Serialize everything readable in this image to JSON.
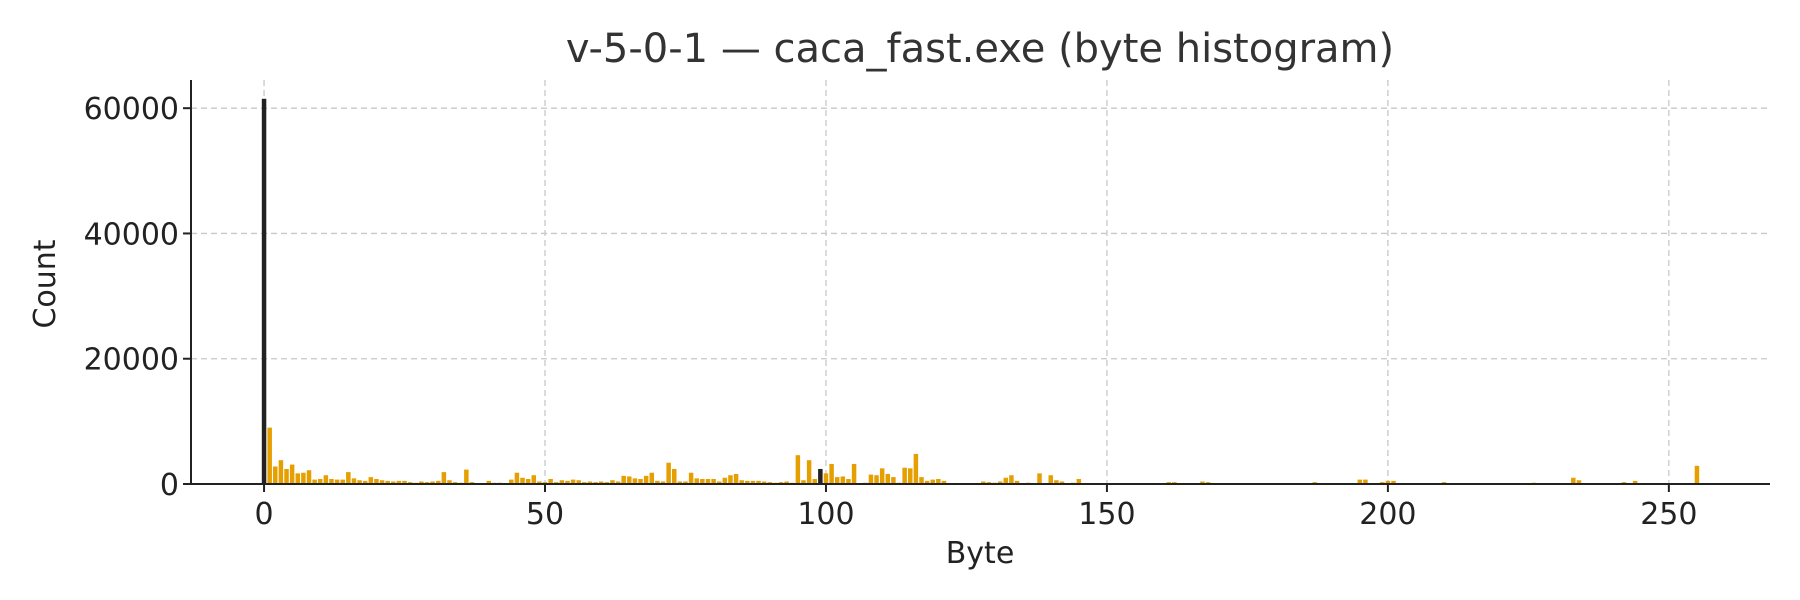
{
  "chart_data": {
    "type": "bar",
    "title": "v-5-0-1 — caca_fast.exe (byte histogram)",
    "xlabel": "Byte",
    "ylabel": "Count",
    "xlim": [
      -13,
      268
    ],
    "ylim": [
      0,
      64500
    ],
    "xticks": [
      0,
      50,
      100,
      150,
      200,
      250
    ],
    "yticks": [
      0,
      20000,
      40000,
      60000
    ],
    "grid": true,
    "bar_color": "#E69F00",
    "highlight_color": "#222222",
    "highlight_bytes": [
      0,
      99
    ],
    "x": [
      0,
      1,
      2,
      3,
      4,
      5,
      6,
      7,
      8,
      9,
      10,
      11,
      12,
      13,
      14,
      15,
      16,
      17,
      18,
      19,
      20,
      21,
      22,
      23,
      24,
      25,
      26,
      27,
      28,
      29,
      30,
      31,
      32,
      33,
      34,
      35,
      36,
      37,
      38,
      39,
      40,
      41,
      42,
      43,
      44,
      45,
      46,
      47,
      48,
      49,
      50,
      51,
      52,
      53,
      54,
      55,
      56,
      57,
      58,
      59,
      60,
      61,
      62,
      63,
      64,
      65,
      66,
      67,
      68,
      69,
      70,
      71,
      72,
      73,
      74,
      75,
      76,
      77,
      78,
      79,
      80,
      81,
      82,
      83,
      84,
      85,
      86,
      87,
      88,
      89,
      90,
      91,
      92,
      93,
      94,
      95,
      96,
      97,
      98,
      99,
      100,
      101,
      102,
      103,
      104,
      105,
      106,
      107,
      108,
      109,
      110,
      111,
      112,
      113,
      114,
      115,
      116,
      117,
      118,
      119,
      120,
      121,
      122,
      123,
      124,
      125,
      126,
      127,
      128,
      129,
      130,
      131,
      132,
      133,
      134,
      135,
      136,
      137,
      138,
      139,
      140,
      141,
      142,
      143,
      144,
      145,
      146,
      147,
      148,
      149,
      150,
      151,
      152,
      153,
      154,
      155,
      156,
      157,
      158,
      159,
      160,
      161,
      162,
      163,
      164,
      165,
      166,
      167,
      168,
      169,
      170,
      171,
      172,
      173,
      174,
      175,
      176,
      177,
      178,
      179,
      180,
      181,
      182,
      183,
      184,
      185,
      186,
      187,
      188,
      189,
      190,
      191,
      192,
      193,
      194,
      195,
      196,
      197,
      198,
      199,
      200,
      201,
      202,
      203,
      204,
      205,
      206,
      207,
      208,
      209,
      210,
      211,
      212,
      213,
      214,
      215,
      216,
      217,
      218,
      219,
      220,
      221,
      222,
      223,
      224,
      225,
      226,
      227,
      228,
      229,
      230,
      231,
      232,
      233,
      234,
      235,
      236,
      237,
      238,
      239,
      240,
      241,
      242,
      243,
      244,
      245,
      246,
      247,
      248,
      249,
      250,
      251,
      252,
      253,
      254,
      255
    ],
    "values": [
      61500,
      9000,
      2800,
      3800,
      2400,
      3100,
      1700,
      1800,
      2200,
      700,
      800,
      1400,
      800,
      700,
      700,
      1900,
      900,
      600,
      500,
      1100,
      800,
      600,
      500,
      400,
      500,
      500,
      300,
      200,
      400,
      300,
      400,
      500,
      1900,
      600,
      300,
      200,
      2300,
      300,
      100,
      100,
      500,
      200,
      200,
      150,
      700,
      1800,
      1000,
      800,
      1400,
      400,
      300,
      800,
      300,
      600,
      500,
      700,
      600,
      300,
      400,
      300,
      400,
      300,
      600,
      400,
      1300,
      1200,
      900,
      800,
      1300,
      1800,
      500,
      400,
      3400,
      2400,
      400,
      400,
      1800,
      900,
      800,
      800,
      800,
      400,
      1000,
      1400,
      1600,
      600,
      500,
      500,
      500,
      400,
      300,
      200,
      300,
      400,
      200,
      4600,
      600,
      3800,
      800,
      2400,
      1700,
      3200,
      1100,
      1200,
      800,
      3200,
      100,
      200,
      1500,
      1400,
      2500,
      1600,
      1100,
      200,
      2600,
      2500,
      4800,
      1100,
      500,
      700,
      800,
      500,
      100,
      100,
      100,
      100,
      100,
      100,
      400,
      300,
      200,
      400,
      1000,
      1400,
      500,
      100,
      200,
      100,
      1700,
      100,
      1400,
      600,
      400,
      100,
      200,
      800,
      100,
      100,
      100,
      100,
      100,
      100,
      100,
      100,
      100,
      100,
      100,
      100,
      100,
      100,
      100,
      300,
      300,
      100,
      100,
      100,
      100,
      400,
      300,
      100,
      100,
      100,
      100,
      100,
      100,
      100,
      100,
      100,
      100,
      100,
      100,
      100,
      100,
      100,
      100,
      100,
      100,
      300,
      100,
      100,
      100,
      100,
      100,
      100,
      100,
      700,
      700,
      100,
      100,
      300,
      500,
      500,
      100,
      100,
      100,
      100,
      100,
      100,
      100,
      100,
      300,
      100,
      100,
      100,
      100,
      100,
      100,
      100,
      100,
      100,
      100,
      100,
      100,
      100,
      100,
      100,
      200,
      100,
      100,
      100,
      100,
      100,
      100,
      1000,
      600,
      100,
      100,
      100,
      100,
      100,
      100,
      100,
      300,
      100,
      500,
      100,
      100,
      100,
      100,
      100,
      100,
      100,
      100,
      100,
      100,
      2900
    ]
  }
}
